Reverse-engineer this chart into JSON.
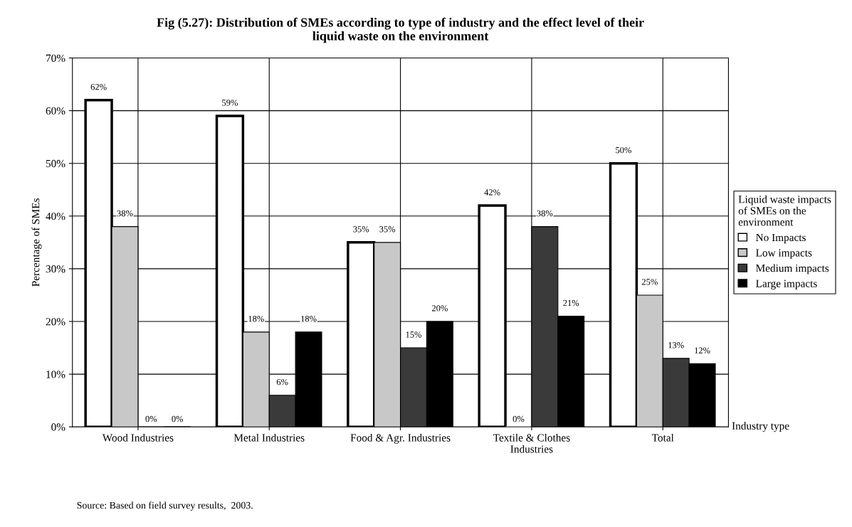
{
  "chart_data": {
    "type": "bar",
    "title": "Fig (5.27): Distribution of SMEs according to type of industry and the effect level of their\nliquid waste on the environment",
    "xlabel": "Industry type",
    "ylabel": "Percentage of SMEs",
    "legend_title": "Liquid waste impacts\nof SMEs on the\nenvironment",
    "categories": [
      "Wood Industries",
      "Metal Industries",
      "Food & Agr. Industries",
      "Textile & Clothes\nIndustries",
      "Total"
    ],
    "series": [
      {
        "name": "No Impacts",
        "color": "#ffffff",
        "values": [
          62,
          59,
          35,
          42,
          50
        ],
        "value_labels": [
          "62%",
          "59%",
          "35%",
          "42%",
          "50%"
        ]
      },
      {
        "name": "Low impacts",
        "color": "#c8c8c8",
        "values": [
          38,
          18,
          35,
          0,
          25
        ],
        "value_labels": [
          "38%",
          "18%",
          "35%",
          "0%",
          "25%"
        ]
      },
      {
        "name": "Medium impacts",
        "color": "#3a3a3a",
        "values": [
          0,
          6,
          15,
          38,
          13
        ],
        "value_labels": [
          "0%",
          "6%",
          "15%",
          "38%",
          "13%"
        ]
      },
      {
        "name": "Large impacts",
        "color": "#000000",
        "values": [
          0,
          18,
          20,
          21,
          12
        ],
        "value_labels": [
          "0%",
          "18%",
          "20%",
          "21%",
          "12%"
        ]
      }
    ],
    "ylim": [
      0,
      70
    ],
    "yticks": [
      {
        "value": 0,
        "label": "0%"
      },
      {
        "value": 10,
        "label": "10%"
      },
      {
        "value": 20,
        "label": "20%"
      },
      {
        "value": 30,
        "label": "30%"
      },
      {
        "value": 40,
        "label": "40%"
      },
      {
        "value": 50,
        "label": "50%"
      },
      {
        "value": 60,
        "label": "60%"
      },
      {
        "value": 70,
        "label": "70%"
      }
    ],
    "grid": true,
    "legend": "right",
    "annotations": [
      "Source: Based on field survey results,  2003."
    ]
  }
}
